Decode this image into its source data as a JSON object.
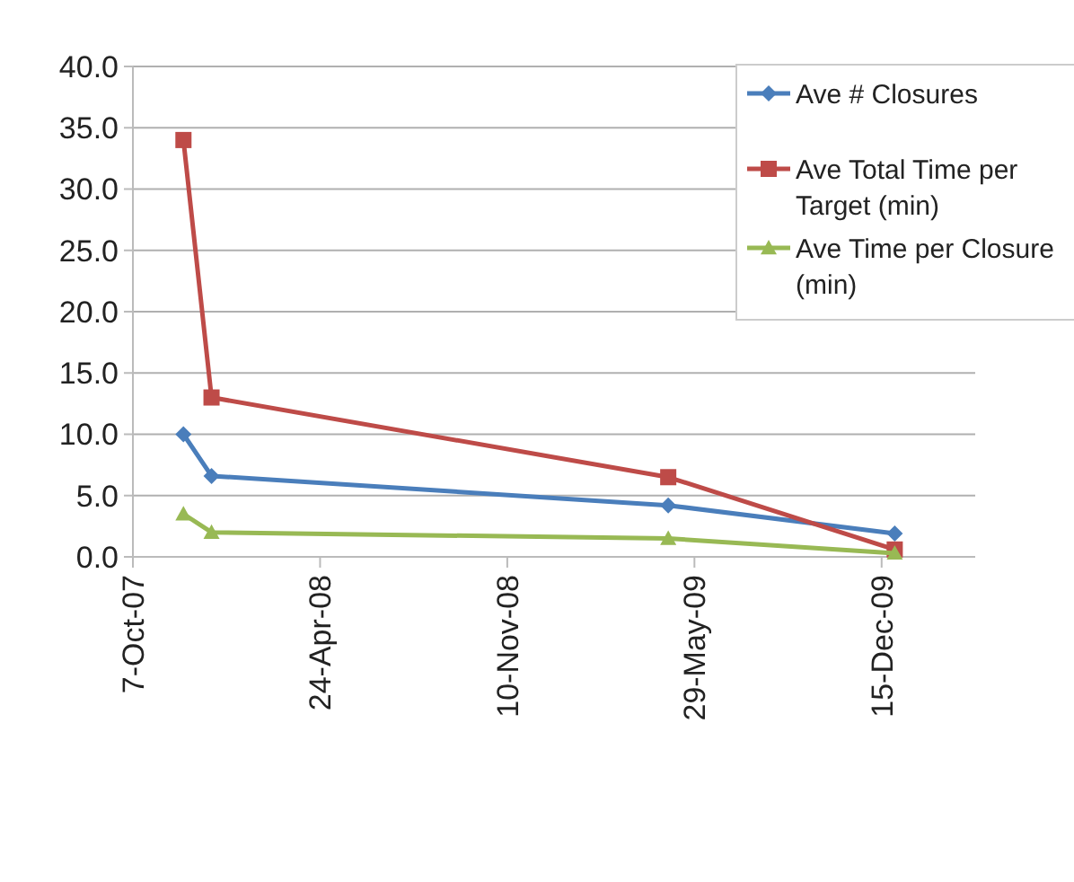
{
  "chart_data": {
    "type": "line",
    "x": [
      "2007-11-30",
      "2007-12-30",
      "2009-05-01",
      "2009-12-29"
    ],
    "series": [
      {
        "name": "Ave # Closures",
        "color": "#4a7ebb",
        "marker": "diamond",
        "values": [
          10.0,
          6.6,
          4.2,
          1.9
        ]
      },
      {
        "name": "Ave Total Time per Target (min)",
        "color": "#be4b48",
        "marker": "square",
        "values": [
          34.0,
          13.0,
          6.5,
          0.6
        ]
      },
      {
        "name": "Ave Time per Closure (min)",
        "color": "#98b954",
        "marker": "triangle",
        "values": [
          3.5,
          2.0,
          1.5,
          0.3
        ]
      }
    ],
    "xlim": [
      "2007-10-07",
      "2010-03-25"
    ],
    "xticks": [
      {
        "value": "2007-10-07",
        "label": "7-Oct-07"
      },
      {
        "value": "2008-04-24",
        "label": "24-Apr-08"
      },
      {
        "value": "2008-11-10",
        "label": "10-Nov-08"
      },
      {
        "value": "2009-05-29",
        "label": "29-May-09"
      },
      {
        "value": "2009-12-15",
        "label": "15-Dec-09"
      }
    ],
    "ylim": [
      0,
      40
    ],
    "yticks": [
      {
        "value": 0,
        "label": "0.0"
      },
      {
        "value": 5,
        "label": "5.0"
      },
      {
        "value": 10,
        "label": "10.0"
      },
      {
        "value": 15,
        "label": "15.0"
      },
      {
        "value": 20,
        "label": "20.0"
      },
      {
        "value": 25,
        "label": "25.0"
      },
      {
        "value": 30,
        "label": "30.0"
      },
      {
        "value": 35,
        "label": "35.0"
      },
      {
        "value": 40,
        "label": "40.0"
      }
    ],
    "grid": "y",
    "legend": "top right",
    "line_style": "solid"
  }
}
